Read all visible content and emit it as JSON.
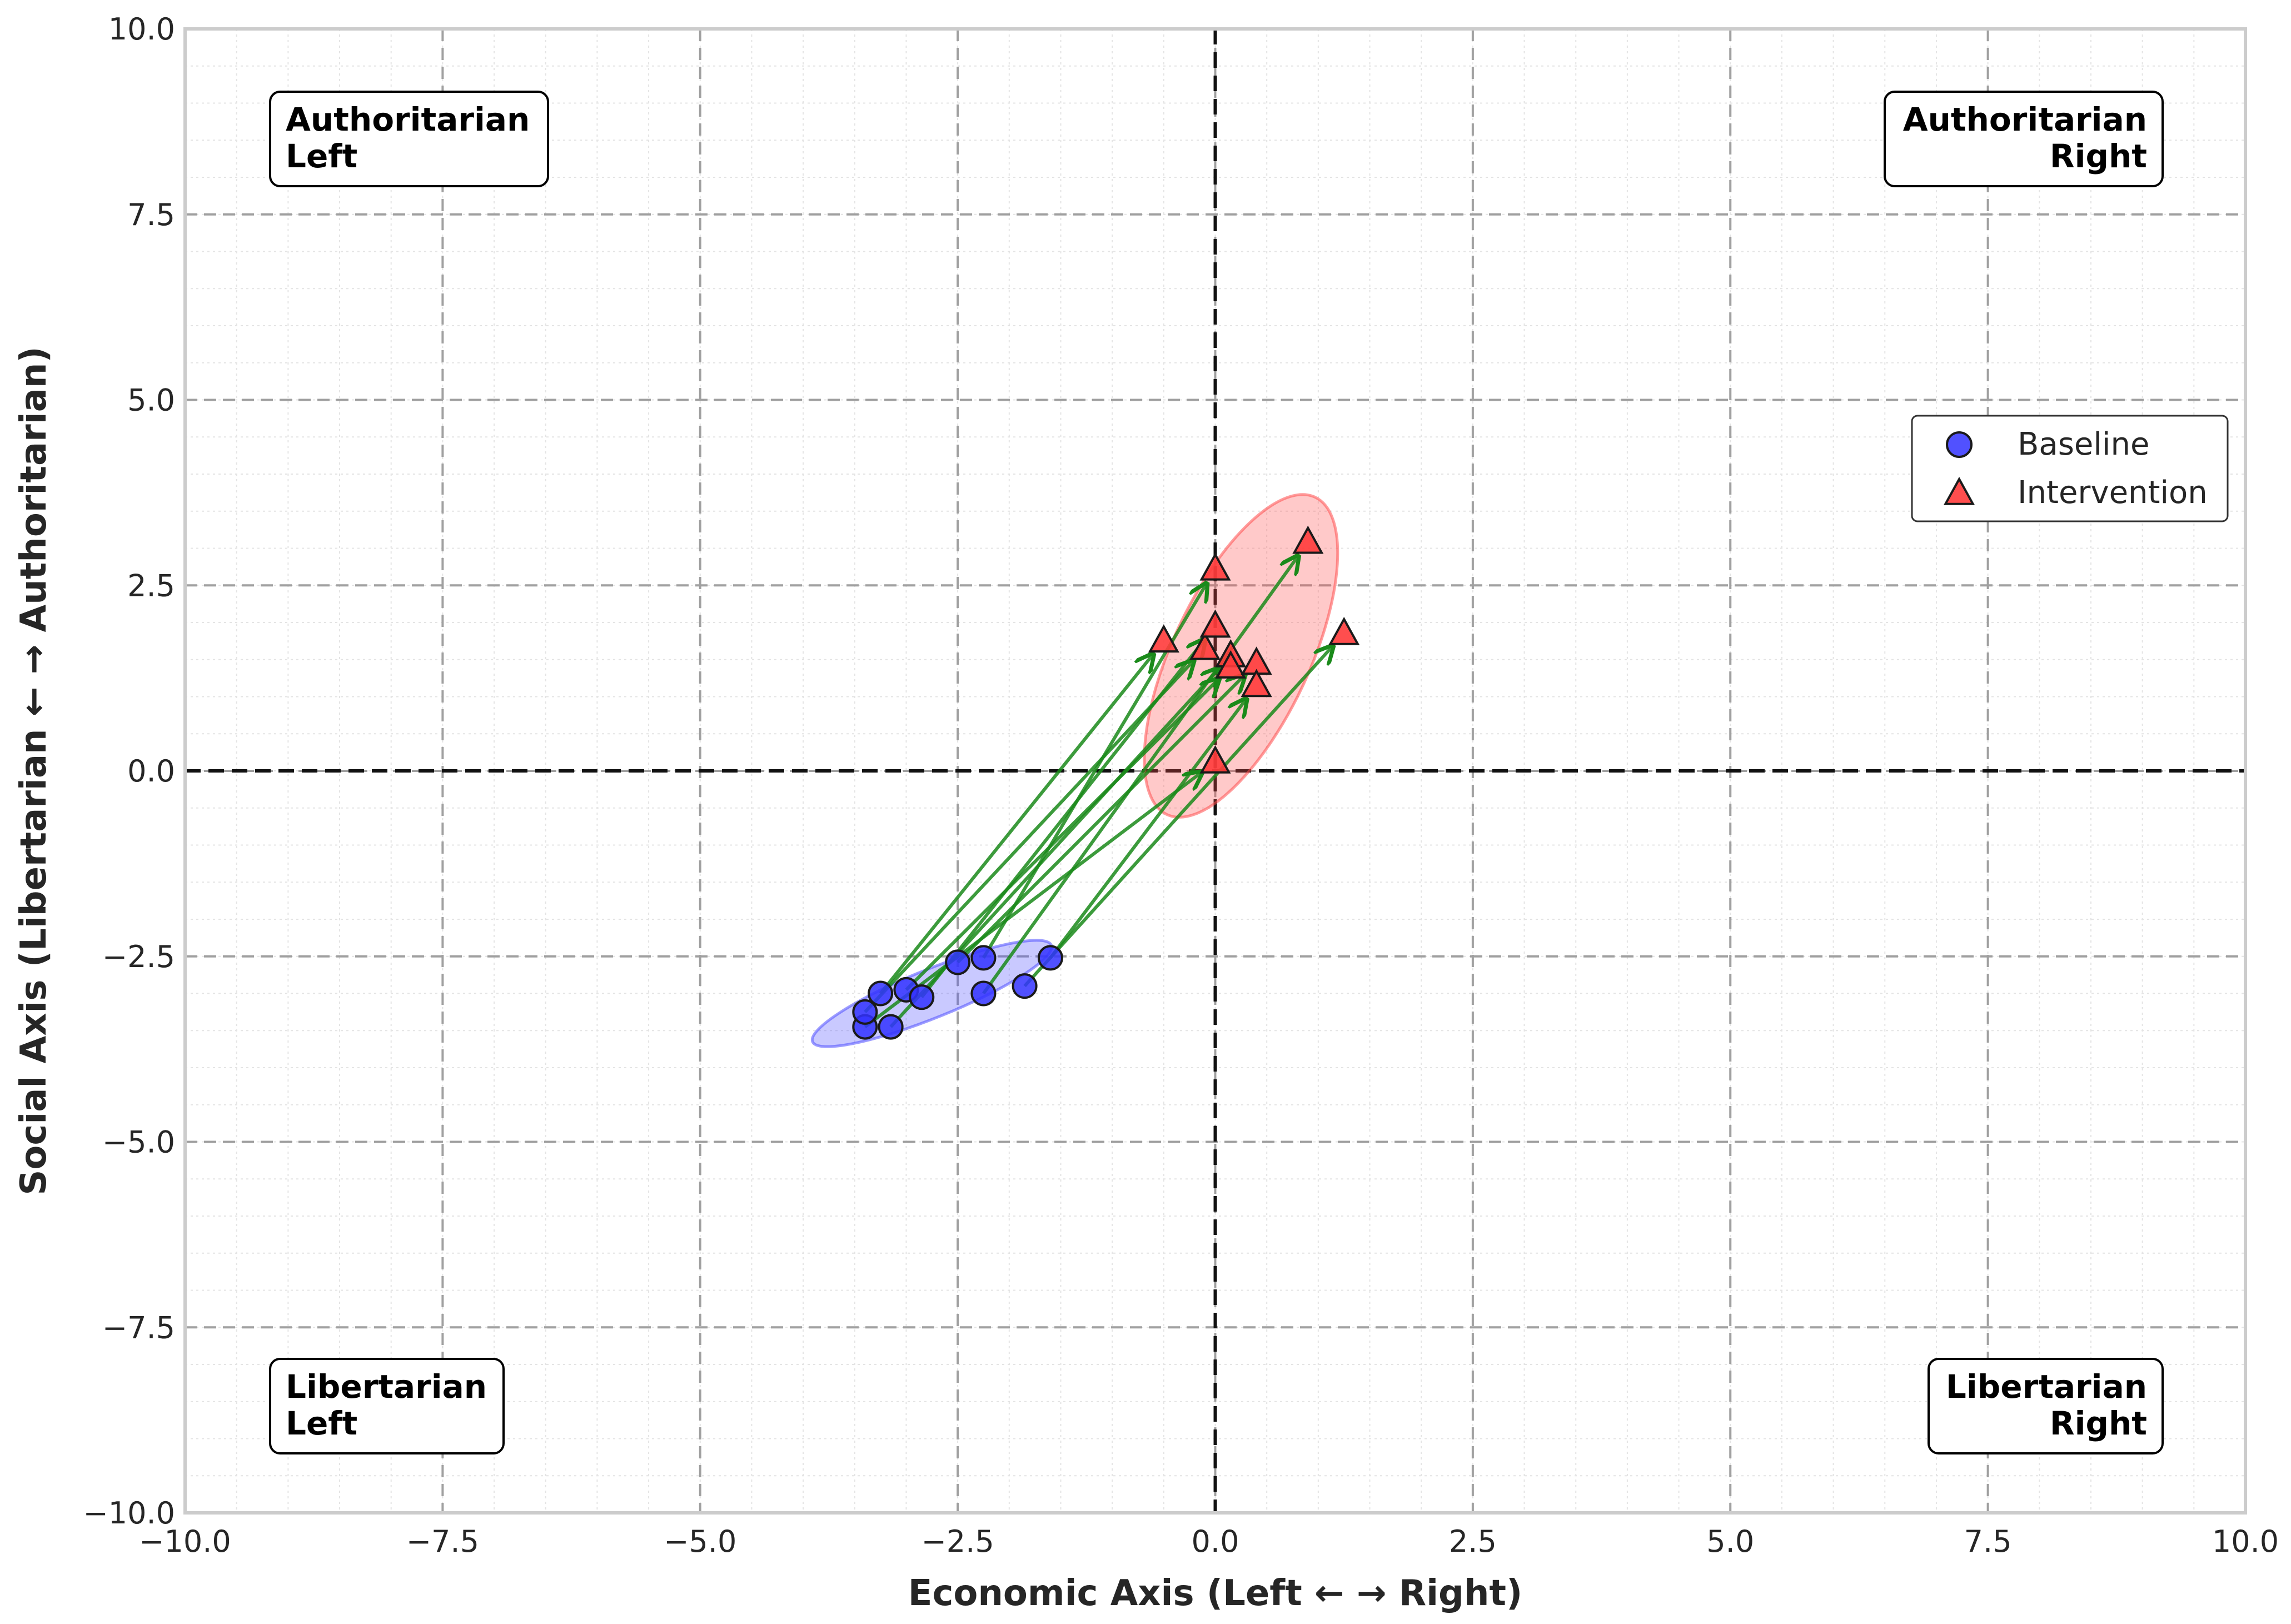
{
  "chart_data": {
    "type": "scatter",
    "xlabel": "Economic Axis (Left ← → Right)",
    "ylabel": "Social Axis (Libertarian ← → Authoritarian)",
    "xlim": [
      -10,
      10
    ],
    "ylim": [
      -10,
      10
    ],
    "xticks": [
      -10,
      -7.5,
      -5,
      -2.5,
      0,
      2.5,
      5,
      7.5,
      10
    ],
    "yticks": [
      -10,
      -7.5,
      -5,
      -2.5,
      0,
      2.5,
      5,
      7.5,
      10
    ],
    "xtick_labels": [
      "−10.0",
      "−7.5",
      "−5.0",
      "−2.5",
      "0.0",
      "2.5",
      "5.0",
      "7.5",
      "10.0"
    ],
    "ytick_labels": [
      "−10.0",
      "−7.5",
      "−5.0",
      "−2.5",
      "0.0",
      "2.5",
      "5.0",
      "7.5",
      "10.0"
    ],
    "grid": true,
    "legend": {
      "placement": "center-right",
      "entries": [
        "Baseline",
        "Intervention"
      ]
    },
    "quadrant_labels": [
      {
        "id": "auth-left",
        "lines": [
          "Authoritarian",
          "Left"
        ],
        "align": "left",
        "corner": "top-left"
      },
      {
        "id": "auth-right",
        "lines": [
          "Authoritarian",
          "Right"
        ],
        "align": "right",
        "corner": "top-right"
      },
      {
        "id": "lib-left",
        "lines": [
          "Libertarian",
          "Left"
        ],
        "align": "left",
        "corner": "bottom-left"
      },
      {
        "id": "lib-right",
        "lines": [
          "Libertarian",
          "Right"
        ],
        "align": "right",
        "corner": "bottom-right"
      }
    ],
    "series": [
      {
        "name": "Baseline",
        "marker": "circle",
        "color": "#3333ff",
        "points": [
          [
            -3.4,
            -3.45
          ],
          [
            -3.15,
            -3.45
          ],
          [
            -3.4,
            -3.25
          ],
          [
            -3.25,
            -3.0
          ],
          [
            -3.0,
            -2.95
          ],
          [
            -2.85,
            -3.05
          ],
          [
            -2.5,
            -2.58
          ],
          [
            -2.25,
            -2.52
          ],
          [
            -2.25,
            -3.0
          ],
          [
            -1.85,
            -2.9
          ],
          [
            -1.6,
            -2.52
          ]
        ]
      },
      {
        "name": "Intervention",
        "marker": "triangle",
        "color": "#ff3b3b",
        "points": [
          [
            -0.5,
            1.75
          ],
          [
            -0.1,
            1.65
          ],
          [
            0.0,
            2.72
          ],
          [
            0.0,
            1.95
          ],
          [
            0.15,
            1.55
          ],
          [
            0.15,
            1.4
          ],
          [
            0.4,
            1.45
          ],
          [
            0.4,
            1.15
          ],
          [
            0.9,
            3.08
          ],
          [
            1.25,
            1.85
          ],
          [
            0.0,
            0.12
          ]
        ]
      }
    ],
    "arrows": {
      "color": "#1a8a1a",
      "pairs": [
        [
          [
            -3.4,
            -3.45
          ],
          [
            0.0,
            0.12
          ]
        ],
        [
          [
            -3.15,
            -3.45
          ],
          [
            0.15,
            1.55
          ]
        ],
        [
          [
            -3.4,
            -3.25
          ],
          [
            -0.1,
            1.65
          ]
        ],
        [
          [
            -3.25,
            -3.0
          ],
          [
            -0.5,
            1.75
          ]
        ],
        [
          [
            -3.0,
            -2.95
          ],
          [
            0.15,
            1.4
          ]
        ],
        [
          [
            -2.85,
            -3.05
          ],
          [
            0.0,
            1.95
          ]
        ],
        [
          [
            -2.5,
            -2.58
          ],
          [
            0.4,
            1.45
          ]
        ],
        [
          [
            -2.25,
            -2.52
          ],
          [
            0.0,
            2.72
          ]
        ],
        [
          [
            -2.25,
            -3.0
          ],
          [
            0.9,
            3.08
          ]
        ],
        [
          [
            -1.85,
            -2.9
          ],
          [
            1.25,
            1.85
          ]
        ],
        [
          [
            -1.6,
            -2.52
          ],
          [
            0.4,
            1.15
          ]
        ]
      ]
    },
    "ellipses": [
      {
        "series": "Baseline",
        "center": [
          -2.75,
          -3.0
        ],
        "width": 2.5,
        "height": 0.65,
        "angle_deg": 22,
        "color": "#4d4dff"
      },
      {
        "series": "Intervention",
        "center": [
          0.25,
          1.55
        ],
        "width": 3.4,
        "height": 1.85,
        "angle_deg": 65,
        "color": "#ff4d4d"
      }
    ]
  }
}
